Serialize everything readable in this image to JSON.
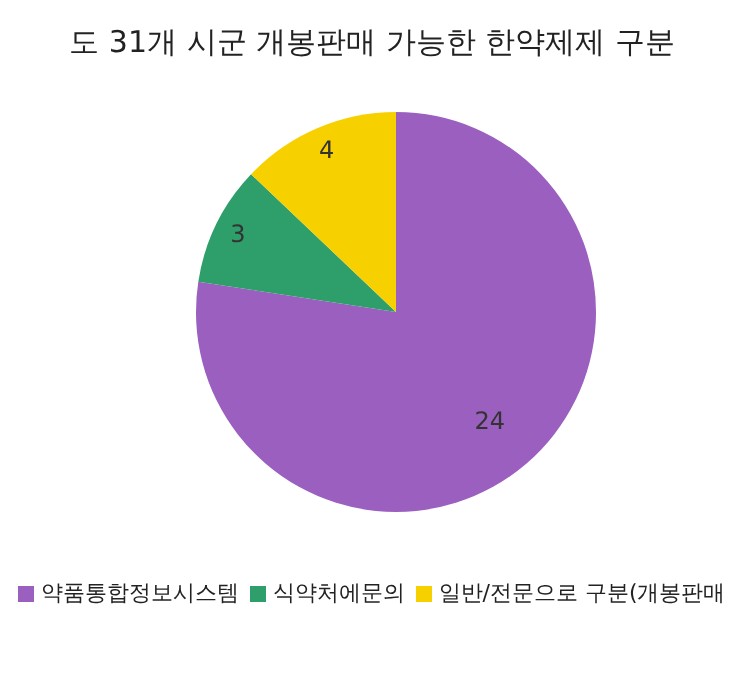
{
  "chart_data": {
    "type": "pie",
    "title": "도 31개 시군 개봉판매 가능한 한약제제 구분",
    "categories": [
      "약품통합정보시스템",
      "식약처에문의",
      "일반/전문으로 구분(개봉판매"
    ],
    "values": [
      24,
      3,
      4
    ],
    "colors": [
      "#9b5fc0",
      "#2e9e6b",
      "#f7d000"
    ],
    "data_labels": true,
    "legend": "bottom"
  }
}
